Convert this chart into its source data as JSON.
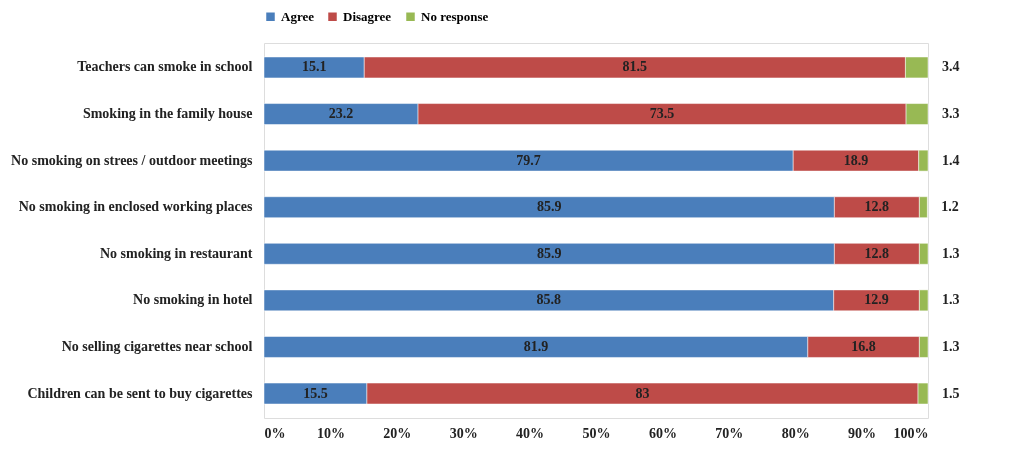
{
  "chart_data": {
    "type": "bar",
    "orientation": "horizontal",
    "stacked": true,
    "data_labels": true,
    "grid": false,
    "legend": "top",
    "categories": [
      "Teachers can smoke in school",
      "Smoking in the family house",
      "No smoking on strees / outdoor meetings",
      "No smoking in enclosed working places",
      "No smoking in restaurant",
      "No smoking in hotel",
      "No selling cigarettes near school",
      "Children can be sent to buy cigarettes"
    ],
    "series": [
      {
        "name": "Agree",
        "color": "#4a7ebb",
        "values": [
          15.1,
          23.2,
          79.7,
          85.9,
          85.9,
          85.8,
          81.9,
          15.5
        ]
      },
      {
        "name": "Disagree",
        "color": "#be4b48",
        "values": [
          81.5,
          73.5,
          18.9,
          12.8,
          12.8,
          12.9,
          16.8,
          83
        ]
      },
      {
        "name": "No response",
        "color": "#98b954",
        "values": [
          3.4,
          3.3,
          1.4,
          1.2,
          1.3,
          1.3,
          1.3,
          1.5
        ]
      }
    ],
    "xlim": [
      0,
      100
    ],
    "xticks": [
      {
        "value": 0,
        "label": "0%"
      },
      {
        "value": 10,
        "label": "10%"
      },
      {
        "value": 20,
        "label": "20%"
      },
      {
        "value": 30,
        "label": "30%"
      },
      {
        "value": 40,
        "label": "40%"
      },
      {
        "value": 50,
        "label": "50%"
      },
      {
        "value": 60,
        "label": "60%"
      },
      {
        "value": 70,
        "label": "70%"
      },
      {
        "value": 80,
        "label": "80%"
      },
      {
        "value": 90,
        "label": "90%"
      },
      {
        "value": 100,
        "label": "100%"
      }
    ]
  }
}
